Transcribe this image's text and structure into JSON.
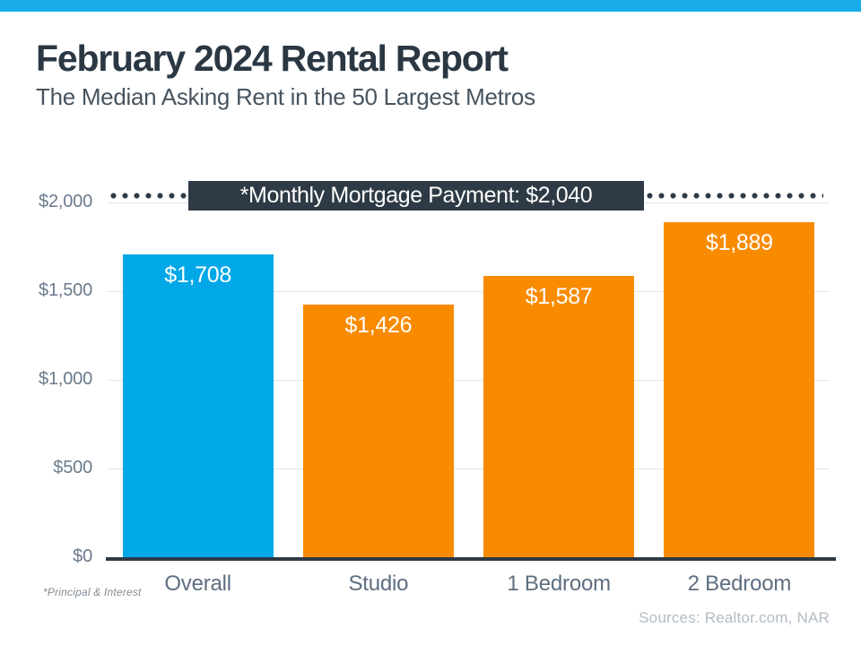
{
  "header": {
    "title": "February 2024 Rental Report",
    "subtitle": "The Median Asking Rent in the 50 Largest Metros"
  },
  "chart_data": {
    "type": "bar",
    "title": "February 2024 Rental Report",
    "subtitle": "The Median Asking Rent in the 50 Largest Metros",
    "categories": [
      "Overall",
      "Studio",
      "1 Bedroom",
      "2 Bedroom"
    ],
    "values": [
      1708,
      1426,
      1587,
      1889
    ],
    "value_labels": [
      "$1,708",
      "$1,426",
      "$1,587",
      "$1,889"
    ],
    "bar_colors": [
      "#00a8e8",
      "#f98b00",
      "#f98b00",
      "#f98b00"
    ],
    "ylim": [
      0,
      2000
    ],
    "y_ticks": [
      {
        "value": 0,
        "label": "$0"
      },
      {
        "value": 500,
        "label": "$500"
      },
      {
        "value": 1000,
        "label": "$1,000"
      },
      {
        "value": 1500,
        "label": "$1,500"
      },
      {
        "value": 2000,
        "label": "$2,000"
      }
    ],
    "grid": true,
    "legend": "none",
    "reference_line": {
      "value": 2040,
      "label": "*Monthly Mortgage Payment: $2,040",
      "style": "dotted",
      "color": "#2e3a45"
    }
  },
  "footnotes": {
    "principal": "*Principal & Interest",
    "sources": "Sources: Realtor.com, NAR"
  },
  "colors": {
    "accent_blue": "#18ade9",
    "bar_blue": "#00a8e8",
    "bar_orange": "#f98b00",
    "dark_slate": "#2e3a45"
  }
}
